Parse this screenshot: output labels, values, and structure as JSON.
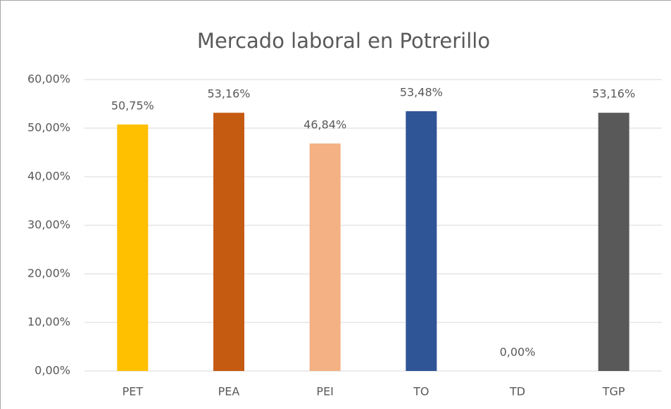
{
  "chart_data": {
    "type": "bar",
    "title": "Mercado laboral en Potrerillo",
    "categories": [
      "PET",
      "PEA",
      "PEI",
      "TO",
      "TD",
      "TGP"
    ],
    "values": [
      50.75,
      53.16,
      46.84,
      53.48,
      0,
      53.16
    ],
    "value_labels": [
      "50,75%",
      "53,16%",
      "46,84%",
      "53,48%",
      "0,00%",
      "53,16%"
    ],
    "colors": [
      "#ffc000",
      "#c55a11",
      "#f4b183",
      "#2f5597",
      "#4472c4",
      "#595959"
    ],
    "ylim": [
      0,
      60
    ],
    "yticks": [
      {
        "value": 0,
        "label": "0,00%"
      },
      {
        "value": 10,
        "label": "10,00%"
      },
      {
        "value": 20,
        "label": "20,00%"
      },
      {
        "value": 30,
        "label": "30,00%"
      },
      {
        "value": 40,
        "label": "40,00%"
      },
      {
        "value": 50,
        "label": "50,00%"
      },
      {
        "value": 60,
        "label": "60,00%"
      }
    ],
    "grid": true
  }
}
